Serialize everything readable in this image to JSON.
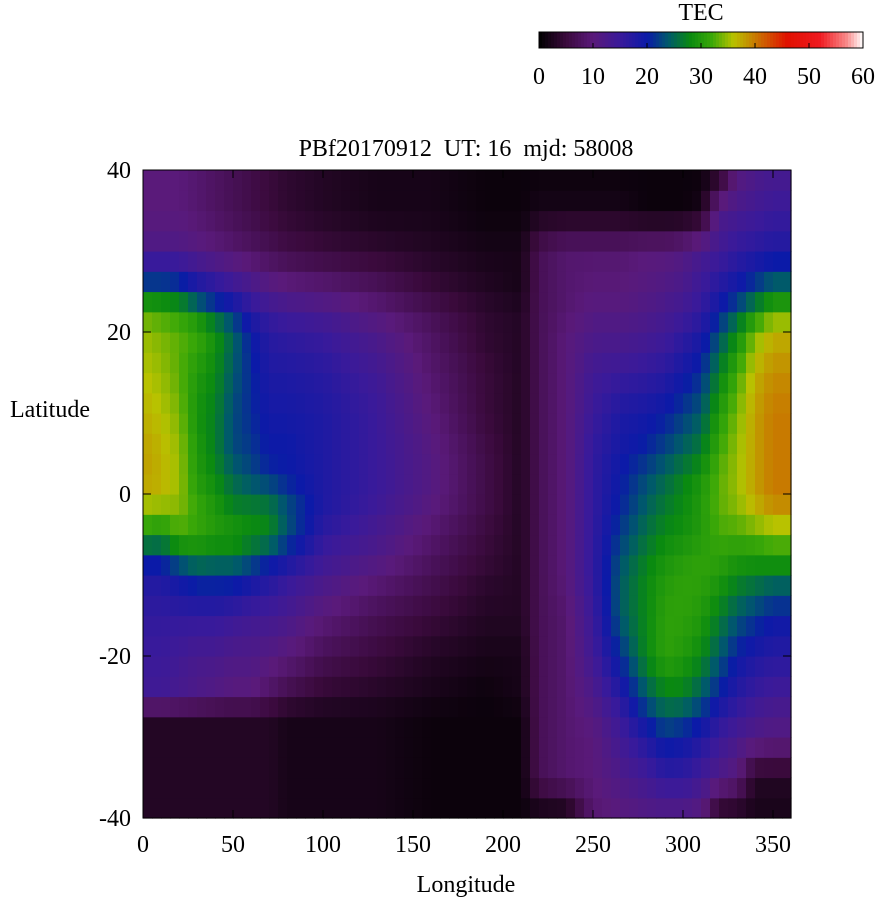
{
  "chart_data": {
    "type": "heatmap",
    "title": "PBf20170912  UT: 16  mjd: 58008",
    "xlabel": "Longitude",
    "ylabel": "Latitude",
    "xlim": [
      0,
      360
    ],
    "ylim": [
      -40,
      40
    ],
    "x_ticks": [
      0,
      50,
      100,
      150,
      200,
      250,
      300,
      350
    ],
    "y_ticks": [
      -40,
      -20,
      0,
      20,
      40
    ],
    "grid": false,
    "colorbar": {
      "label": "TEC",
      "range": [
        0,
        60
      ],
      "ticks": [
        0,
        10,
        20,
        30,
        40,
        50,
        60
      ],
      "placement": "top-right",
      "colormap": [
        {
          "v": 0,
          "color": "#000000"
        },
        {
          "v": 5,
          "color": "#3a0a3c"
        },
        {
          "v": 10,
          "color": "#5a1a7a"
        },
        {
          "v": 15,
          "color": "#3a1a9a"
        },
        {
          "v": 20,
          "color": "#0b1aa8"
        },
        {
          "v": 24,
          "color": "#005a6a"
        },
        {
          "v": 28,
          "color": "#0a8a10"
        },
        {
          "v": 32,
          "color": "#3aa808"
        },
        {
          "v": 36,
          "color": "#b8c200"
        },
        {
          "v": 40,
          "color": "#c87a00"
        },
        {
          "v": 46,
          "color": "#e01000"
        },
        {
          "v": 52,
          "color": "#f01a20"
        },
        {
          "v": 57,
          "color": "#f88a8a"
        },
        {
          "v": 60,
          "color": "#ffffff"
        }
      ]
    },
    "grid_resolution": {
      "dlon": 5,
      "dlat": 2.5
    },
    "lon_samples": [
      0,
      10,
      20,
      30,
      40,
      50,
      60,
      70,
      80,
      100,
      130,
      160,
      190,
      210,
      220,
      235,
      250,
      265,
      280,
      290,
      300,
      310,
      320,
      330,
      340,
      350,
      360
    ],
    "lat_samples": [
      -40,
      -35,
      -30,
      -27.5,
      -25,
      -20,
      -15,
      -10,
      -7.5,
      -5,
      -2.5,
      0,
      2.5,
      5,
      10,
      15,
      20,
      22.5,
      25,
      30,
      35,
      40
    ],
    "tec_profiles": [
      {
        "lon": 0,
        "tec": [
          3,
          3,
          3,
          3,
          14,
          15,
          16,
          18,
          22,
          30,
          34,
          37,
          38,
          38,
          37,
          36,
          35,
          33,
          25,
          12,
          10,
          10
        ]
      },
      {
        "lon": 10,
        "tec": [
          3,
          3,
          3,
          3,
          14,
          15,
          16,
          18,
          22,
          29,
          33,
          37,
          37,
          37,
          36,
          35,
          34,
          32,
          25,
          12,
          10,
          10
        ]
      },
      {
        "lon": 20,
        "tec": [
          3,
          3,
          3,
          3,
          13,
          14,
          16,
          20,
          26,
          32,
          34,
          35,
          35,
          35,
          34,
          33,
          33,
          31,
          24,
          12,
          10,
          10
        ]
      },
      {
        "lon": 30,
        "tec": [
          3,
          3,
          3,
          3,
          12,
          13,
          16,
          22,
          28,
          31,
          32,
          31,
          30,
          30,
          29,
          30,
          32,
          28,
          20,
          11,
          9,
          9
        ]
      },
      {
        "lon": 40,
        "tec": [
          3,
          3,
          3,
          3,
          11,
          13,
          16,
          22,
          27,
          30,
          30,
          29,
          28,
          27,
          27,
          28,
          29,
          24,
          18,
          10,
          8,
          8
        ]
      },
      {
        "lon": 50,
        "tec": [
          3,
          3,
          3,
          3,
          10,
          12,
          15,
          22,
          27,
          30,
          28,
          26,
          25,
          23,
          23,
          24,
          25,
          21,
          16,
          9,
          7,
          7
        ]
      },
      {
        "lon": 60,
        "tec": [
          3,
          3,
          3,
          3,
          10,
          12,
          14,
          20,
          25,
          28,
          28,
          25,
          23,
          22,
          21,
          21,
          20,
          17,
          14,
          8,
          6,
          6
        ]
      },
      {
        "lon": 70,
        "tec": [
          3,
          3,
          3,
          3,
          8,
          11,
          14,
          18,
          22,
          28,
          27,
          25,
          21,
          20,
          19,
          18,
          17,
          15,
          12,
          7,
          5,
          5
        ]
      },
      {
        "lon": 80,
        "tec": [
          2,
          2,
          2,
          2,
          6,
          10,
          13,
          16,
          20,
          23,
          24,
          22,
          20,
          20,
          19,
          18,
          16,
          14,
          11,
          6,
          4,
          4
        ]
      },
      {
        "lon": 100,
        "tec": [
          2,
          2,
          2,
          2,
          4,
          7,
          10,
          13,
          15,
          16,
          18,
          18,
          18,
          18,
          18,
          17,
          15,
          13,
          10,
          5,
          3,
          3
        ]
      },
      {
        "lon": 130,
        "tec": [
          2,
          2,
          2,
          2,
          3,
          5,
          7,
          10,
          12,
          13,
          14,
          15,
          15,
          15,
          15,
          14,
          12,
          10,
          8,
          4,
          2,
          2
        ]
      },
      {
        "lon": 160,
        "tec": [
          1,
          1,
          1,
          1,
          2,
          3,
          5,
          7,
          8,
          9,
          10,
          11,
          11,
          11,
          10,
          9,
          8,
          7,
          5,
          3,
          2,
          2
        ]
      },
      {
        "lon": 190,
        "tec": [
          1,
          1,
          1,
          1,
          1,
          2,
          3,
          4,
          5,
          5,
          6,
          6,
          6,
          6,
          5,
          5,
          4,
          4,
          3,
          2,
          1,
          1
        ]
      },
      {
        "lon": 210,
        "tec": [
          1,
          1,
          1,
          1,
          2,
          2,
          3,
          3,
          3,
          3,
          3,
          3,
          3,
          3,
          3,
          3,
          3,
          3,
          2,
          2,
          1,
          1
        ]
      },
      {
        "lon": 220,
        "tec": [
          1,
          7,
          7,
          7,
          7,
          7,
          7,
          7,
          7,
          7,
          7,
          7,
          7,
          7,
          7,
          7,
          7,
          7,
          7,
          7,
          2,
          1
        ]
      },
      {
        "lon": 235,
        "tec": [
          1,
          9,
          9,
          9,
          9,
          9,
          9,
          10,
          10,
          10,
          10,
          10,
          10,
          10,
          10,
          10,
          10,
          9,
          9,
          9,
          2,
          1
        ]
      },
      {
        "lon": 250,
        "tec": [
          9,
          10,
          10,
          11,
          12,
          14,
          15,
          16,
          16,
          16,
          16,
          16,
          16,
          16,
          15,
          14,
          12,
          11,
          10,
          9,
          2,
          1
        ]
      },
      {
        "lon": 265,
        "tec": [
          10,
          12,
          14,
          15,
          17,
          21,
          24,
          24,
          23,
          22,
          21,
          20,
          20,
          19,
          18,
          15,
          12,
          11,
          10,
          9,
          2,
          1
        ]
      },
      {
        "lon": 280,
        "tec": [
          11,
          14,
          18,
          21,
          24,
          28,
          28,
          28,
          27,
          26,
          25,
          24,
          23,
          21,
          19,
          16,
          13,
          12,
          11,
          10,
          1,
          1
        ]
      },
      {
        "lon": 290,
        "tec": [
          11,
          16,
          21,
          24,
          27,
          31,
          31,
          30,
          29,
          28,
          27,
          26,
          25,
          23,
          20,
          17,
          14,
          13,
          12,
          10,
          1,
          1
        ]
      },
      {
        "lon": 300,
        "tec": [
          11,
          16,
          20,
          23,
          27,
          30,
          31,
          31,
          30,
          29,
          28,
          28,
          27,
          25,
          22,
          19,
          16,
          14,
          13,
          11,
          1,
          1
        ]
      },
      {
        "lon": 310,
        "tec": [
          10,
          14,
          18,
          21,
          24,
          28,
          30,
          31,
          31,
          30,
          30,
          30,
          29,
          27,
          24,
          21,
          18,
          16,
          15,
          13,
          2,
          1
        ]
      },
      {
        "lon": 320,
        "tec": [
          2,
          12,
          15,
          17,
          20,
          24,
          27,
          30,
          31,
          32,
          33,
          33,
          33,
          32,
          30,
          27,
          23,
          20,
          18,
          14,
          12,
          2
        ]
      },
      {
        "lon": 330,
        "tec": [
          2,
          10,
          13,
          15,
          17,
          20,
          24,
          28,
          30,
          32,
          34,
          35,
          35,
          35,
          34,
          32,
          28,
          24,
          20,
          16,
          13,
          10
        ]
      },
      {
        "lon": 340,
        "tec": [
          2,
          3,
          12,
          13,
          15,
          18,
          22,
          27,
          30,
          33,
          36,
          38,
          38,
          38,
          38,
          37,
          34,
          29,
          23,
          17,
          14,
          12
        ]
      },
      {
        "lon": 350,
        "tec": [
          2,
          3,
          11,
          12,
          14,
          17,
          20,
          26,
          31,
          34,
          38,
          40,
          40,
          40,
          40,
          39,
          37,
          33,
          26,
          18,
          15,
          13
        ]
      },
      {
        "lon": 360,
        "tec": [
          2,
          3,
          11,
          12,
          14,
          17,
          20,
          26,
          31,
          34,
          38,
          40,
          40,
          40,
          40,
          39,
          37,
          33,
          26,
          18,
          15,
          13
        ]
      }
    ]
  }
}
